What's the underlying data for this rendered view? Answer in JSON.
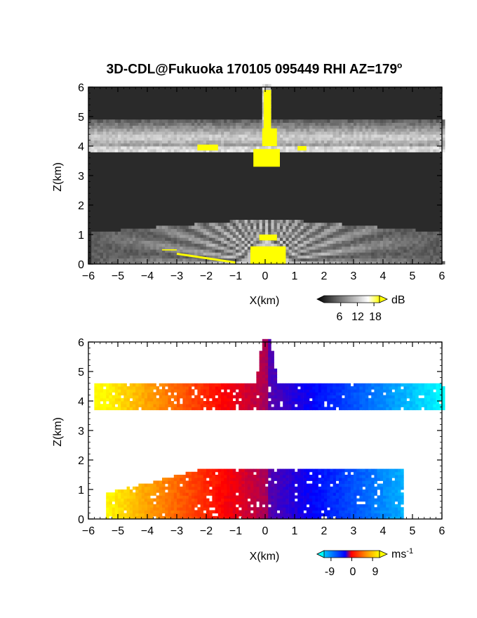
{
  "title": {
    "text": "3D-CDL@Fukuoka 170105 095449 RHI AZ=179",
    "degree_mark": "o"
  },
  "chart_data": [
    {
      "type": "heatmap",
      "quantity": "backscatter intensity",
      "xlabel": "X(km)",
      "ylabel": "Z(km)",
      "xlim": [
        -6,
        6
      ],
      "ylim": [
        0,
        6
      ],
      "x_ticks": [
        "-6",
        "-5",
        "-4",
        "-3",
        "-2",
        "-1",
        "0",
        "1",
        "2",
        "3",
        "4",
        "5",
        "6"
      ],
      "y_ticks": [
        "0",
        "1",
        "2",
        "3",
        "4",
        "5",
        "6"
      ],
      "colorbar": {
        "unit": "dB",
        "tick_labels": [
          "6",
          "12",
          "18"
        ],
        "ticks": [
          6,
          12,
          18
        ],
        "range": [
          0,
          20
        ],
        "colors": [
          "#000000",
          "#ffffff",
          "#ffff00"
        ]
      },
      "features": {
        "upper_layer_km": [
          3.8,
          4.8
        ],
        "lower_layer_km": [
          0,
          1.5
        ],
        "column_top_km": 6.0
      }
    },
    {
      "type": "heatmap",
      "quantity": "doppler velocity",
      "xlabel": "X(km)",
      "ylabel": "Z(km)",
      "xlim": [
        -6,
        6
      ],
      "ylim": [
        0,
        6
      ],
      "x_ticks": [
        "-6",
        "-5",
        "-4",
        "-3",
        "-2",
        "-1",
        "0",
        "1",
        "2",
        "3",
        "4",
        "5",
        "6"
      ],
      "y_ticks": [
        "0",
        "1",
        "2",
        "3",
        "4",
        "5",
        "6"
      ],
      "colorbar": {
        "unit": "ms",
        "unit_exponent": "-1",
        "tick_labels": [
          "-9",
          "0",
          "9"
        ],
        "ticks": [
          -9,
          0,
          9
        ],
        "range": [
          -12,
          12
        ],
        "colors": [
          "#00ffff",
          "#0000ff",
          "#ff0000",
          "#ffff00"
        ]
      },
      "features": {
        "upper_layer_km": [
          3.7,
          4.6
        ],
        "lower_layer_km": [
          0,
          1.7
        ]
      }
    }
  ]
}
